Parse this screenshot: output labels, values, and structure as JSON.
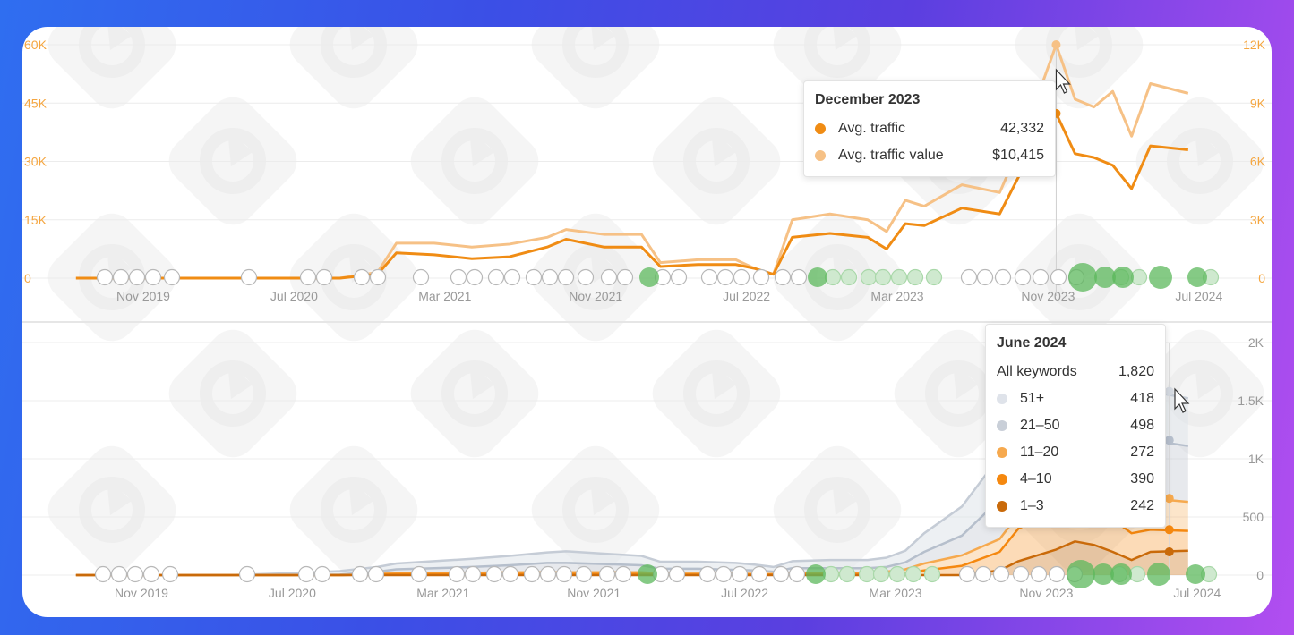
{
  "colors": {
    "traffic": "#f08c14",
    "traffic_value": "#f6c186",
    "kw_51": "#dfe3ea",
    "kw_21_50": "#c9cfd8",
    "kw_11_20": "#f6a94e",
    "kw_4_10": "#f5880f",
    "kw_1_3": "#c96a0a",
    "marker_green": "#5cb85c",
    "marker_gray": "#888888"
  },
  "top_chart_tooltip": {
    "title": "December 2023",
    "rows": [
      {
        "label": "Avg. traffic",
        "value": "42,332",
        "color": "#f08c14"
      },
      {
        "label": "Avg. traffic value",
        "value": "$10,415",
        "color": "#f6c186"
      }
    ]
  },
  "bottom_chart_tooltip": {
    "title": "June 2024",
    "total_label": "All keywords",
    "total_value": "1,820",
    "rows": [
      {
        "label": "51+",
        "value": "418",
        "color": "#dfe3ea"
      },
      {
        "label": "21–50",
        "value": "498",
        "color": "#c9cfd8"
      },
      {
        "label": "11–20",
        "value": "272",
        "color": "#f6a94e"
      },
      {
        "label": "4–10",
        "value": "390",
        "color": "#f5880f"
      },
      {
        "label": "1–3",
        "value": "242",
        "color": "#c96a0a"
      }
    ]
  },
  "chart_data": [
    {
      "type": "line",
      "title": "",
      "x_ticks": [
        "Nov 2019",
        "Jul 2020",
        "Mar 2021",
        "Nov 2021",
        "Jul 2022",
        "Mar 2023",
        "Nov 2023",
        "Jul 2024"
      ],
      "x": [
        "2019-08",
        "2019-10",
        "2019-12",
        "2020-02",
        "2020-04",
        "2020-06",
        "2020-08",
        "2020-10",
        "2020-12",
        "2021-01",
        "2021-03",
        "2021-05",
        "2021-07",
        "2021-09",
        "2021-10",
        "2021-12",
        "2022-02",
        "2022-03",
        "2022-05",
        "2022-07",
        "2022-08",
        "2022-09",
        "2022-10",
        "2022-12",
        "2023-02",
        "2023-03",
        "2023-04",
        "2023-05",
        "2023-07",
        "2023-09",
        "2023-10",
        "2023-12",
        "2024-01",
        "2024-02",
        "2024-03",
        "2024-04",
        "2024-05",
        "2024-07"
      ],
      "y_left": {
        "ticks": [
          "0",
          "15K",
          "30K",
          "45K",
          "60K"
        ],
        "ylim": [
          0,
          60000
        ]
      },
      "y_right": {
        "ticks": [
          "0",
          "3K",
          "6K",
          "9K",
          "12K"
        ],
        "ylim": [
          0,
          12000
        ]
      },
      "series": [
        {
          "name": "Avg. traffic",
          "axis": "left",
          "values": [
            0,
            0,
            0,
            0,
            0,
            0,
            0,
            0,
            1000,
            6500,
            6000,
            5000,
            5500,
            8000,
            10000,
            8000,
            8000,
            3000,
            3500,
            3500,
            2500,
            1000,
            10500,
            11500,
            10500,
            7500,
            14000,
            13500,
            18000,
            16500,
            26000,
            42332,
            32000,
            31000,
            29000,
            23000,
            34000,
            33000
          ]
        },
        {
          "name": "Avg. traffic value",
          "axis": "right",
          "values": [
            0,
            0,
            0,
            0,
            0,
            0,
            0,
            0,
            300,
            1800,
            1800,
            1600,
            1750,
            2100,
            2500,
            2250,
            2250,
            800,
            950,
            950,
            500,
            200,
            3000,
            3300,
            3000,
            2400,
            4000,
            3700,
            4800,
            4400,
            6600,
            12000,
            9200,
            8800,
            9600,
            7300,
            10000,
            9500
          ]
        }
      ]
    },
    {
      "type": "area",
      "title": "",
      "stacked": true,
      "x_ticks": [
        "Nov 2019",
        "Jul 2020",
        "Mar 2021",
        "Nov 2021",
        "Jul 2022",
        "Mar 2023",
        "Nov 2023",
        "Jul 2024"
      ],
      "y_right": {
        "ticks": [
          "0",
          "500",
          "1K",
          "1.5K",
          "2K"
        ],
        "ylim": [
          0,
          2000
        ]
      },
      "x": [
        "2019-08",
        "2019-10",
        "2019-12",
        "2020-02",
        "2020-04",
        "2020-06",
        "2020-08",
        "2020-10",
        "2020-12",
        "2021-01",
        "2021-03",
        "2021-05",
        "2021-07",
        "2021-09",
        "2021-10",
        "2021-12",
        "2022-02",
        "2022-03",
        "2022-05",
        "2022-07",
        "2022-08",
        "2022-09",
        "2022-10",
        "2022-12",
        "2023-02",
        "2023-03",
        "2023-04",
        "2023-05",
        "2023-07",
        "2023-09",
        "2023-10",
        "2023-12",
        "2024-01",
        "2024-02",
        "2024-03",
        "2024-04",
        "2024-05",
        "2024-07"
      ],
      "series": [
        {
          "name": "1–3",
          "values": [
            0,
            0,
            0,
            0,
            0,
            0,
            0,
            0,
            0,
            0,
            0,
            0,
            0,
            0,
            0,
            0,
            0,
            0,
            0,
            0,
            0,
            0,
            0,
            0,
            0,
            0,
            0,
            0,
            0,
            40,
            120,
            220,
            290,
            260,
            200,
            130,
            200,
            210
          ]
        },
        {
          "name": "4–10",
          "values": [
            0,
            0,
            0,
            0,
            0,
            0,
            0,
            0,
            5,
            10,
            10,
            10,
            10,
            10,
            10,
            10,
            10,
            5,
            5,
            5,
            5,
            5,
            10,
            10,
            10,
            15,
            20,
            40,
            80,
            160,
            280,
            330,
            320,
            310,
            280,
            230,
            190,
            170
          ]
        },
        {
          "name": "11–20",
          "values": [
            0,
            0,
            0,
            0,
            0,
            0,
            0,
            0,
            5,
            10,
            10,
            10,
            15,
            15,
            15,
            15,
            15,
            10,
            10,
            10,
            5,
            5,
            10,
            10,
            10,
            15,
            30,
            60,
            90,
            110,
            120,
            120,
            120,
            150,
            180,
            190,
            270,
            250
          ]
        },
        {
          "name": "21–50",
          "values": [
            0,
            0,
            0,
            0,
            0,
            0,
            0,
            5,
            20,
            30,
            40,
            50,
            60,
            80,
            80,
            70,
            60,
            40,
            40,
            30,
            30,
            20,
            40,
            40,
            40,
            40,
            60,
            100,
            170,
            340,
            470,
            560,
            540,
            560,
            530,
            480,
            500,
            480
          ]
        },
        {
          "name": "51+",
          "values": [
            0,
            0,
            0,
            0,
            0,
            10,
            20,
            30,
            40,
            50,
            60,
            70,
            80,
            90,
            100,
            90,
            80,
            60,
            60,
            60,
            50,
            40,
            60,
            70,
            70,
            80,
            100,
            160,
            250,
            370,
            470,
            510,
            500,
            500,
            470,
            440,
            420,
            410
          ]
        }
      ]
    }
  ]
}
